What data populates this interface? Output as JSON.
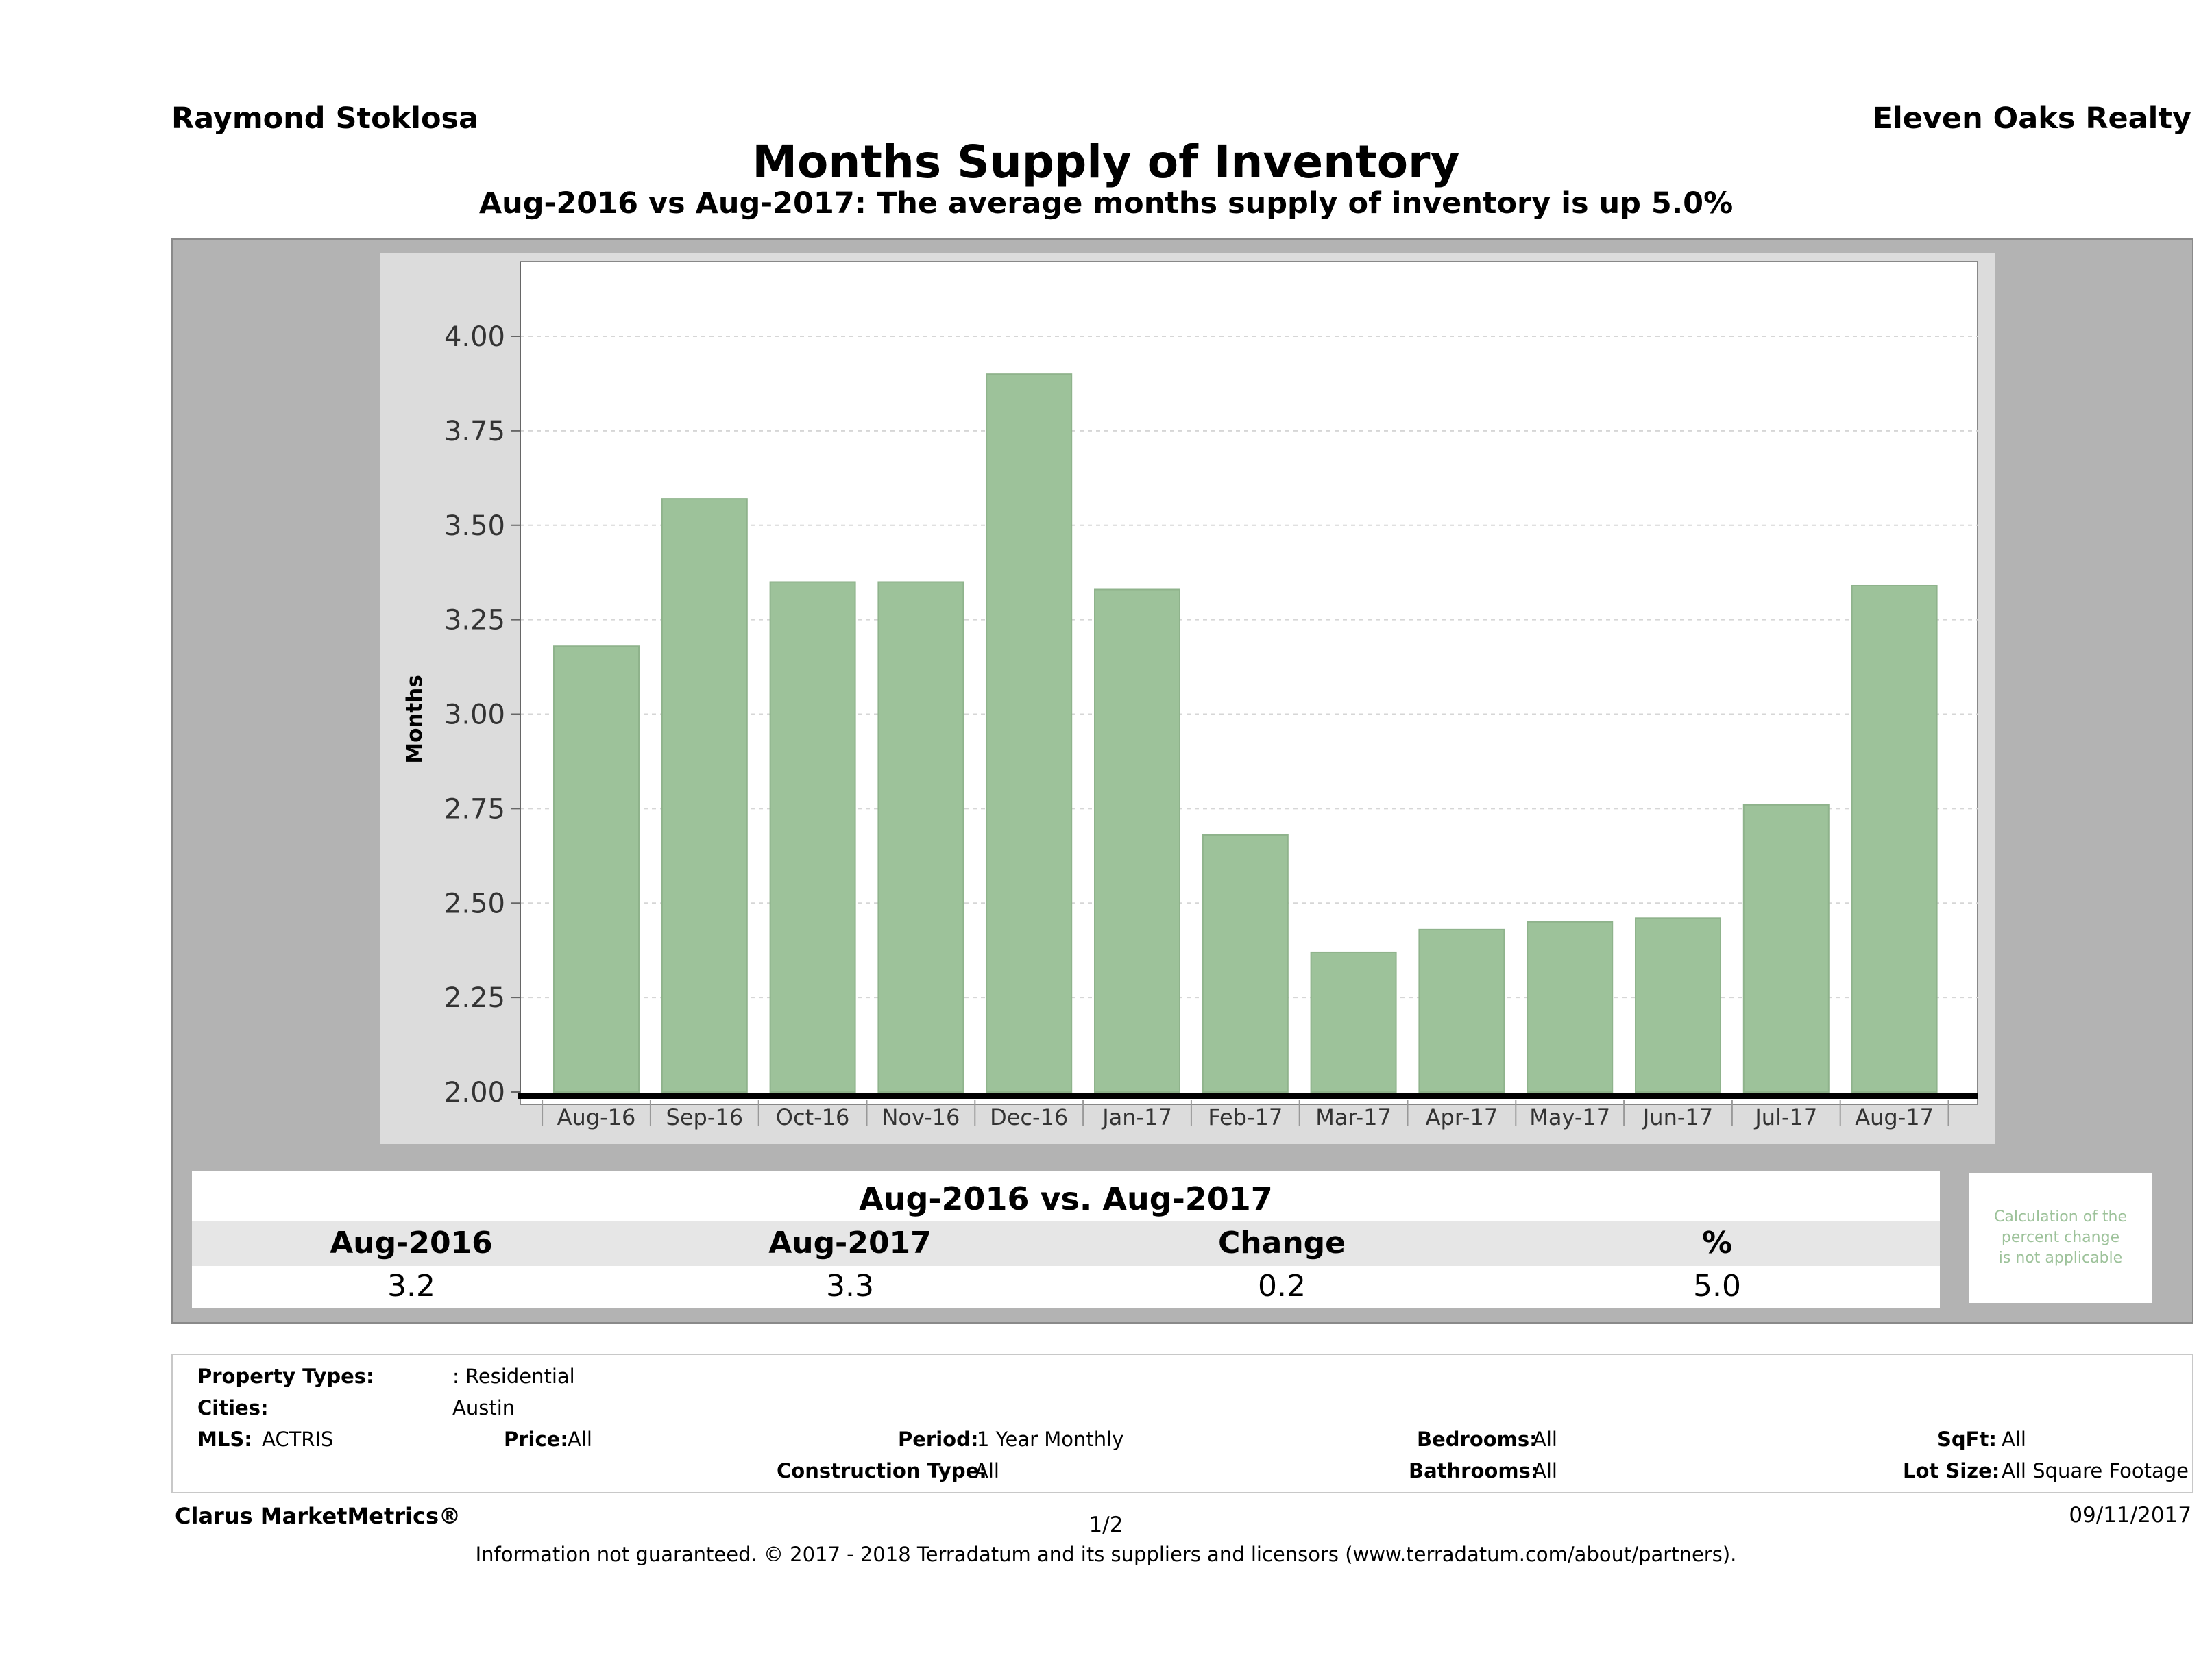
{
  "header": {
    "agent": "Raymond Stoklosa",
    "company": "Eleven Oaks Realty",
    "title": "Months Supply of Inventory",
    "subtitle": "Aug-2016 vs Aug-2017: The average months supply of inventory is up 5.0%"
  },
  "chart_data": {
    "type": "bar",
    "categories": [
      "Aug-16",
      "Sep-16",
      "Oct-16",
      "Nov-16",
      "Dec-16",
      "Jan-17",
      "Feb-17",
      "Mar-17",
      "Apr-17",
      "May-17",
      "Jun-17",
      "Jul-17",
      "Aug-17"
    ],
    "values": [
      3.18,
      3.57,
      3.35,
      3.35,
      3.9,
      3.33,
      2.68,
      2.37,
      2.43,
      2.45,
      2.46,
      2.76,
      3.34
    ],
    "ylabel": "Months",
    "ylim": [
      2.0,
      4.1
    ],
    "yticks": [
      "2.00",
      "2.25",
      "2.50",
      "2.75",
      "3.00",
      "3.25",
      "3.50",
      "3.75",
      "4.00"
    ],
    "bar_color": "#9dc29a",
    "grid": true
  },
  "comparison": {
    "title": "Aug-2016 vs. Aug-2017",
    "headers": [
      "Aug-2016",
      "Aug-2017",
      "Change",
      "%"
    ],
    "values": [
      "3.2",
      "3.3",
      "0.2",
      "5.0"
    ],
    "note": [
      "Calculation of the",
      "percent change",
      "is not applicable"
    ]
  },
  "filters": {
    "property_types_label": "Property Types:",
    "property_types_value": ": Residential",
    "cities_label": "Cities:",
    "cities_value": "Austin",
    "mls_label": "MLS:",
    "mls_value": "ACTRIS",
    "price_label": "Price:",
    "price_value": "All",
    "period_label": "Period:",
    "period_value": "1 Year Monthly",
    "construction_label": "Construction Type:",
    "construction_value": "All",
    "bedrooms_label": "Bedrooms:",
    "bedrooms_value": "All",
    "bathrooms_label": "Bathrooms:",
    "bathrooms_value": "All",
    "sqft_label": "SqFt:",
    "sqft_value": "All",
    "lot_label": "Lot Size:",
    "lot_value": "All Square Footage"
  },
  "footer": {
    "brand": "Clarus MarketMetrics®",
    "page": "1/2",
    "date": "09/11/2017",
    "disclaimer": "Information not guaranteed. © 2017 - 2018 Terradatum and its suppliers and licensors (www.terradatum.com/about/partners)."
  }
}
